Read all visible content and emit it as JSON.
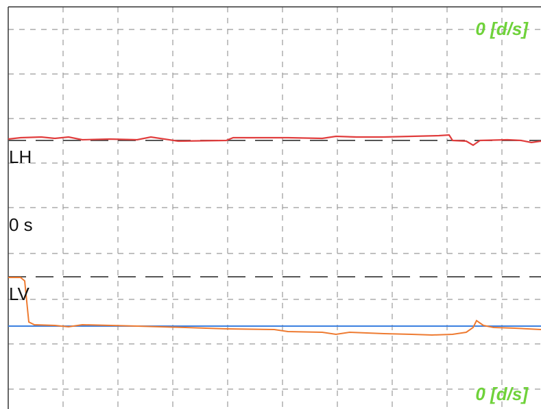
{
  "labels": {
    "top_scale": "0 [d/s]",
    "bottom_scale": "0 [d/s]",
    "horizontal": "LH",
    "time": "0 s",
    "vertical": "LV"
  }
}
